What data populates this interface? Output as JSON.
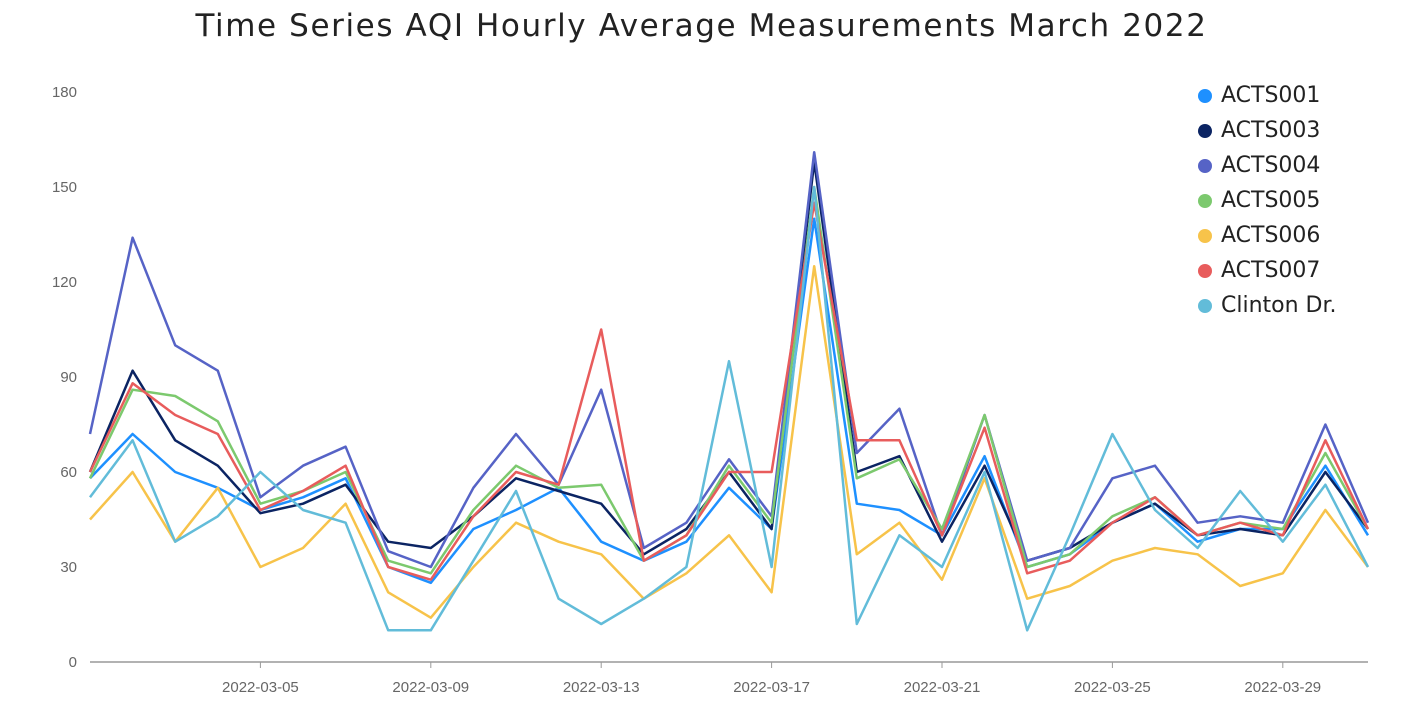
{
  "chart_data": {
    "type": "line",
    "title": "Time Series AQI Hourly Average Measurements March 2022",
    "xlabel": "",
    "ylabel": "",
    "ylim": [
      0,
      180
    ],
    "yticks": [
      0,
      30,
      60,
      90,
      120,
      150,
      180
    ],
    "xlim": [
      "2022-03-01",
      "2022-03-31"
    ],
    "xticks": [
      "2022-03-05",
      "2022-03-09",
      "2022-03-13",
      "2022-03-17",
      "2022-03-21",
      "2022-03-25",
      "2022-03-29"
    ],
    "grid": false,
    "legend_position": "top-right",
    "series": [
      {
        "name": "ACTS001",
        "color": "#1e90ff",
        "x": [
          "2022-03-01",
          "2022-03-02",
          "2022-03-03",
          "2022-03-04",
          "2022-03-05",
          "2022-03-06",
          "2022-03-07",
          "2022-03-08",
          "2022-03-09",
          "2022-03-10",
          "2022-03-11",
          "2022-03-12",
          "2022-03-13",
          "2022-03-14",
          "2022-03-15",
          "2022-03-16",
          "2022-03-17",
          "2022-03-18",
          "2022-03-19",
          "2022-03-20",
          "2022-03-21",
          "2022-03-22",
          "2022-03-23",
          "2022-03-24",
          "2022-03-25",
          "2022-03-26",
          "2022-03-27",
          "2022-03-28",
          "2022-03-29",
          "2022-03-30",
          "2022-03-31"
        ],
        "y": [
          58,
          72,
          60,
          55,
          48,
          52,
          58,
          30,
          25,
          42,
          48,
          55,
          38,
          32,
          38,
          55,
          42,
          140,
          50,
          48,
          40,
          65,
          30,
          34,
          44,
          50,
          38,
          42,
          42,
          62,
          40
        ]
      },
      {
        "name": "ACTS003",
        "color": "#0b2463",
        "x": [
          "2022-03-01",
          "2022-03-02",
          "2022-03-03",
          "2022-03-04",
          "2022-03-05",
          "2022-03-06",
          "2022-03-07",
          "2022-03-08",
          "2022-03-09",
          "2022-03-10",
          "2022-03-11",
          "2022-03-12",
          "2022-03-13",
          "2022-03-14",
          "2022-03-15",
          "2022-03-16",
          "2022-03-17",
          "2022-03-18",
          "2022-03-19",
          "2022-03-20",
          "2022-03-21",
          "2022-03-22",
          "2022-03-23",
          "2022-03-24",
          "2022-03-25",
          "2022-03-26",
          "2022-03-27",
          "2022-03-28",
          "2022-03-29",
          "2022-03-30",
          "2022-03-31"
        ],
        "y": [
          60,
          92,
          70,
          62,
          47,
          50,
          56,
          38,
          36,
          46,
          58,
          54,
          50,
          34,
          42,
          60,
          42,
          158,
          60,
          65,
          38,
          62,
          32,
          36,
          44,
          50,
          40,
          42,
          40,
          60,
          42
        ]
      },
      {
        "name": "ACTS004",
        "color": "#5663c6",
        "x": [
          "2022-03-01",
          "2022-03-02",
          "2022-03-03",
          "2022-03-04",
          "2022-03-05",
          "2022-03-06",
          "2022-03-07",
          "2022-03-08",
          "2022-03-09",
          "2022-03-10",
          "2022-03-11",
          "2022-03-12",
          "2022-03-13",
          "2022-03-14",
          "2022-03-15",
          "2022-03-16",
          "2022-03-17",
          "2022-03-18",
          "2022-03-19",
          "2022-03-20",
          "2022-03-21",
          "2022-03-22",
          "2022-03-23",
          "2022-03-24",
          "2022-03-25",
          "2022-03-26",
          "2022-03-27",
          "2022-03-28",
          "2022-03-29",
          "2022-03-30",
          "2022-03-31"
        ],
        "y": [
          72,
          134,
          100,
          92,
          52,
          62,
          68,
          35,
          30,
          55,
          72,
          56,
          86,
          36,
          44,
          64,
          46,
          161,
          66,
          80,
          40,
          78,
          32,
          36,
          58,
          62,
          44,
          46,
          44,
          75,
          44
        ]
      },
      {
        "name": "ACTS005",
        "color": "#7cc96e",
        "x": [
          "2022-03-01",
          "2022-03-02",
          "2022-03-03",
          "2022-03-04",
          "2022-03-05",
          "2022-03-06",
          "2022-03-07",
          "2022-03-08",
          "2022-03-09",
          "2022-03-10",
          "2022-03-11",
          "2022-03-12",
          "2022-03-13",
          "2022-03-14",
          "2022-03-15",
          "2022-03-16",
          "2022-03-17",
          "2022-03-18",
          "2022-03-19",
          "2022-03-20",
          "2022-03-21",
          "2022-03-22",
          "2022-03-23",
          "2022-03-24",
          "2022-03-25",
          "2022-03-26",
          "2022-03-27",
          "2022-03-28",
          "2022-03-29",
          "2022-03-30",
          "2022-03-31"
        ],
        "y": [
          58,
          86,
          84,
          76,
          50,
          54,
          60,
          32,
          28,
          48,
          62,
          55,
          56,
          32,
          40,
          62,
          44,
          150,
          58,
          64,
          42,
          78,
          30,
          34,
          46,
          52,
          40,
          44,
          42,
          66,
          42
        ]
      },
      {
        "name": "ACTS006",
        "color": "#f7c34a",
        "x": [
          "2022-03-01",
          "2022-03-02",
          "2022-03-03",
          "2022-03-04",
          "2022-03-05",
          "2022-03-06",
          "2022-03-07",
          "2022-03-08",
          "2022-03-09",
          "2022-03-10",
          "2022-03-11",
          "2022-03-12",
          "2022-03-13",
          "2022-03-14",
          "2022-03-15",
          "2022-03-16",
          "2022-03-17",
          "2022-03-18",
          "2022-03-19",
          "2022-03-20",
          "2022-03-21",
          "2022-03-22",
          "2022-03-23",
          "2022-03-24",
          "2022-03-25",
          "2022-03-26",
          "2022-03-27",
          "2022-03-28",
          "2022-03-29",
          "2022-03-30",
          "2022-03-31"
        ],
        "y": [
          45,
          60,
          38,
          55,
          30,
          36,
          50,
          22,
          14,
          30,
          44,
          38,
          34,
          20,
          28,
          40,
          22,
          125,
          34,
          44,
          26,
          58,
          20,
          24,
          32,
          36,
          34,
          24,
          28,
          48,
          30
        ]
      },
      {
        "name": "ACTS007",
        "color": "#e85c5c",
        "x": [
          "2022-03-01",
          "2022-03-02",
          "2022-03-03",
          "2022-03-04",
          "2022-03-05",
          "2022-03-06",
          "2022-03-07",
          "2022-03-08",
          "2022-03-09",
          "2022-03-10",
          "2022-03-11",
          "2022-03-12",
          "2022-03-13",
          "2022-03-14",
          "2022-03-15",
          "2022-03-16",
          "2022-03-17",
          "2022-03-18",
          "2022-03-19",
          "2022-03-20",
          "2022-03-21",
          "2022-03-22",
          "2022-03-23",
          "2022-03-24",
          "2022-03-25",
          "2022-03-26",
          "2022-03-27",
          "2022-03-28",
          "2022-03-29",
          "2022-03-30",
          "2022-03-31"
        ],
        "y": [
          60,
          88,
          78,
          72,
          48,
          54,
          62,
          30,
          26,
          46,
          60,
          56,
          105,
          32,
          40,
          60,
          60,
          145,
          70,
          70,
          40,
          74,
          28,
          32,
          44,
          52,
          40,
          44,
          40,
          70,
          42
        ]
      },
      {
        "name": "Clinton Dr.",
        "color": "#62bcd9",
        "x": [
          "2022-03-01",
          "2022-03-02",
          "2022-03-03",
          "2022-03-04",
          "2022-03-05",
          "2022-03-06",
          "2022-03-07",
          "2022-03-08",
          "2022-03-09",
          "2022-03-10",
          "2022-03-11",
          "2022-03-12",
          "2022-03-13",
          "2022-03-14",
          "2022-03-15",
          "2022-03-16",
          "2022-03-17",
          "2022-03-18",
          "2022-03-19",
          "2022-03-20",
          "2022-03-21",
          "2022-03-22",
          "2022-03-23",
          "2022-03-24",
          "2022-03-25",
          "2022-03-26",
          "2022-03-27",
          "2022-03-28",
          "2022-03-29",
          "2022-03-30",
          "2022-03-31"
        ],
        "y": [
          52,
          70,
          38,
          46,
          60,
          48,
          44,
          10,
          10,
          32,
          54,
          20,
          12,
          20,
          30,
          95,
          30,
          150,
          12,
          40,
          30,
          60,
          10,
          40,
          72,
          48,
          36,
          54,
          38,
          56,
          30
        ]
      }
    ]
  }
}
